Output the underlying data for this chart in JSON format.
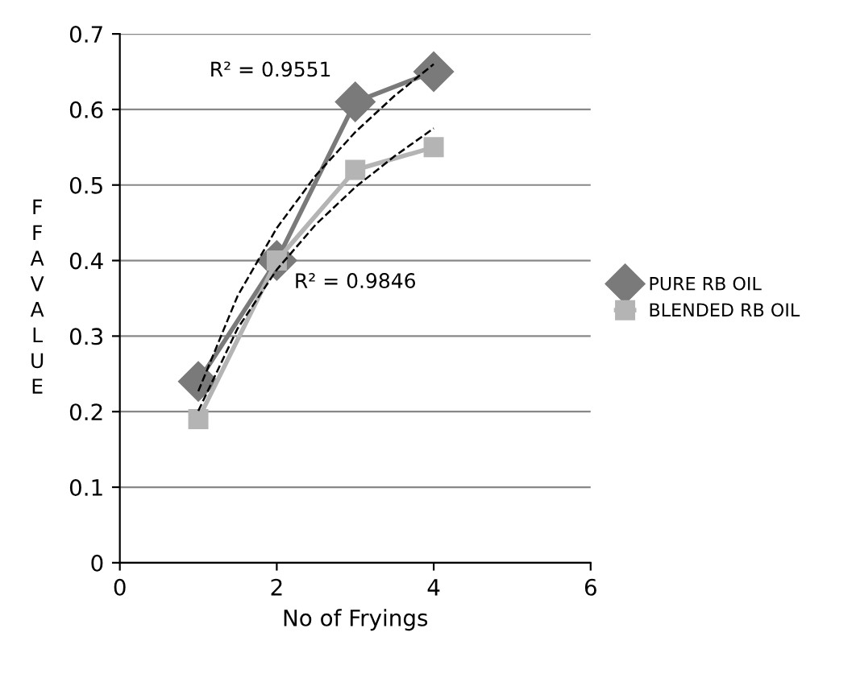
{
  "chart_data": {
    "type": "line",
    "xlabel": "No of Fryings",
    "ylabel": "FFA VALUE",
    "xlim": [
      0,
      6
    ],
    "xticks": [
      0,
      2,
      4,
      6
    ],
    "ylim": [
      0,
      0.7
    ],
    "yticks": [
      0,
      0.1,
      0.2,
      0.3,
      0.4,
      0.5,
      0.6,
      0.7
    ],
    "grid": "y",
    "legend": "right",
    "series": [
      {
        "name": "PURE RB OIL",
        "color": "#7a7a7a",
        "marker": "diamond",
        "x": [
          1,
          2,
          3,
          4
        ],
        "values": [
          0.24,
          0.4,
          0.61,
          0.65
        ]
      },
      {
        "name": "BLENDED RB OIL",
        "color": "#b4b4b4",
        "marker": "square",
        "x": [
          1,
          2,
          3,
          4
        ],
        "values": [
          0.19,
          0.4,
          0.52,
          0.55
        ]
      },
      {
        "color": "#000000",
        "marker": "none",
        "line_style": "dashed",
        "x": [
          1,
          1.5,
          2,
          2.5,
          3,
          3.5,
          4
        ],
        "values": [
          0.227,
          0.353,
          0.443,
          0.513,
          0.57,
          0.618,
          0.66
        ]
      },
      {
        "color": "#000000",
        "marker": "none",
        "line_style": "dashed",
        "x": [
          1,
          1.5,
          2,
          2.5,
          3,
          3.5,
          4
        ],
        "values": [
          0.201,
          0.31,
          0.388,
          0.448,
          0.497,
          0.538,
          0.575
        ]
      }
    ],
    "annotations": [
      "R² = 0.9551",
      "R² = 0.9846"
    ]
  }
}
